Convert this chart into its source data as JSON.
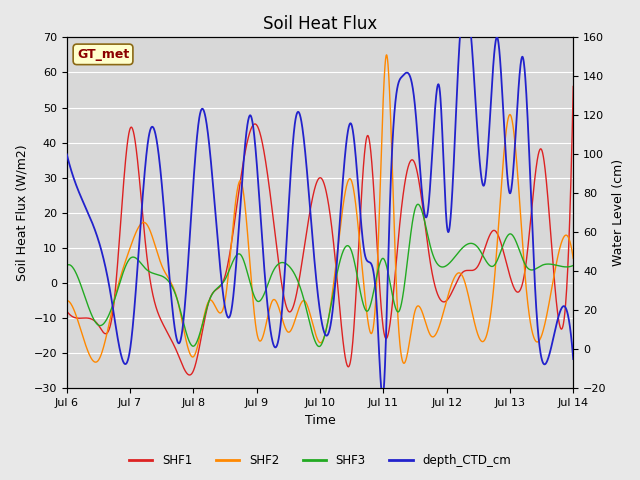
{
  "title": "Soil Heat Flux",
  "xlabel": "Time",
  "ylabel_left": "Soil Heat Flux (W/m2)",
  "ylabel_right": "Water Level (cm)",
  "ylim_left": [
    -30,
    70
  ],
  "ylim_right": [
    -20,
    160
  ],
  "xlim": [
    0,
    8
  ],
  "xtick_positions": [
    0,
    1,
    2,
    3,
    4,
    5,
    6,
    7,
    8
  ],
  "xtick_labels": [
    "Jul 6",
    "Jul 7",
    "Jul 8",
    "Jul 9",
    "Jul 10",
    "Jul 11",
    "Jul 12",
    "Jul 13",
    "Jul 14"
  ],
  "yticks_left": [
    -30,
    -20,
    -10,
    0,
    10,
    20,
    30,
    40,
    50,
    60,
    70
  ],
  "yticks_right": [
    -20,
    0,
    20,
    40,
    60,
    80,
    100,
    120,
    140,
    160
  ],
  "fig_bg_color": "#e8e8e8",
  "plot_bg_color": "#d8d8d8",
  "grid_color": "#ffffff",
  "annotation_text": "GT_met",
  "annotation_color": "#8B0000",
  "annotation_bg": "#ffffcc",
  "annotation_border": "#8B6914",
  "colors": {
    "SHF1": "#dd2222",
    "SHF2": "#ff8800",
    "SHF3": "#22aa22",
    "depth_CTD_cm": "#2222cc"
  },
  "shf1_t": [
    0,
    0.25,
    0.5,
    0.75,
    1.0,
    1.25,
    1.5,
    1.75,
    2.0,
    2.25,
    2.5,
    2.75,
    3.0,
    3.25,
    3.5,
    3.75,
    4.0,
    4.25,
    4.5,
    4.75,
    5.0,
    5.25,
    5.5,
    5.75,
    6.0,
    6.25,
    6.5,
    6.75,
    7.0,
    7.25,
    7.5,
    7.75,
    8.0
  ],
  "shf1_v": [
    -8,
    -10,
    -12,
    -5,
    44,
    10,
    -11,
    -20,
    -25,
    -5,
    2,
    30,
    45,
    20,
    -8,
    10,
    30,
    5,
    -20,
    42,
    -13,
    15,
    34,
    5,
    -5,
    3,
    5,
    15,
    2,
    5,
    38,
    -8,
    56
  ],
  "shf2_t": [
    0,
    0.25,
    0.5,
    0.75,
    1.0,
    1.25,
    1.5,
    1.75,
    2.0,
    2.25,
    2.5,
    2.75,
    3.0,
    3.25,
    3.5,
    3.75,
    4.0,
    4.25,
    4.5,
    4.75,
    4.9,
    5.05,
    5.2,
    5.5,
    5.75,
    6.0,
    6.25,
    6.5,
    6.75,
    7.0,
    7.25,
    7.5,
    7.75,
    8.0
  ],
  "shf2_v": [
    -5,
    -15,
    -22,
    -5,
    10,
    17,
    5,
    -5,
    -21,
    -5,
    -5,
    29,
    -14,
    -5,
    -14,
    -5,
    -17,
    5,
    29,
    -10,
    2,
    65,
    2,
    -8,
    -15,
    -5,
    2,
    -15,
    0,
    48,
    0,
    -15,
    7,
    7
  ],
  "shf3_t": [
    0,
    0.25,
    0.5,
    0.75,
    1.0,
    1.25,
    1.5,
    1.75,
    2.0,
    2.25,
    2.5,
    2.75,
    3.0,
    3.25,
    3.5,
    3.75,
    4.0,
    4.25,
    4.5,
    4.75,
    5.0,
    5.25,
    5.5,
    5.75,
    6.0,
    6.25,
    6.5,
    6.75,
    7.0,
    7.25,
    7.5,
    7.75,
    8.0
  ],
  "shf3_v": [
    5,
    -2,
    -12,
    -5,
    7,
    4,
    2,
    -5,
    -18,
    -5,
    1,
    8,
    -5,
    3,
    5,
    -5,
    -18,
    1,
    9,
    -8,
    7,
    -8,
    21,
    10,
    5,
    10,
    10,
    5,
    14,
    5,
    5,
    5,
    5
  ],
  "depth_t": [
    0,
    0.2,
    0.4,
    0.7,
    1.0,
    1.3,
    1.5,
    1.8,
    2.1,
    2.4,
    2.6,
    2.9,
    3.1,
    3.4,
    3.6,
    3.9,
    4.2,
    4.5,
    4.7,
    4.9,
    5.0,
    5.1,
    5.3,
    5.5,
    5.7,
    5.9,
    6.0,
    6.2,
    6.4,
    6.6,
    6.8,
    7.0,
    7.2,
    7.4,
    7.6,
    7.8,
    8.0
  ],
  "depth_v": [
    100,
    80,
    65,
    27,
    0,
    110,
    85,
    5,
    120,
    50,
    20,
    120,
    50,
    20,
    115,
    50,
    20,
    115,
    50,
    20,
    -23,
    70,
    140,
    125,
    70,
    130,
    65,
    155,
    155,
    85,
    160,
    80,
    150,
    30,
    -5,
    20,
    -5
  ],
  "linewidth": 1.0,
  "legend_labels": [
    "SHF1",
    "SHF2",
    "SHF3",
    "depth_CTD_cm"
  ]
}
